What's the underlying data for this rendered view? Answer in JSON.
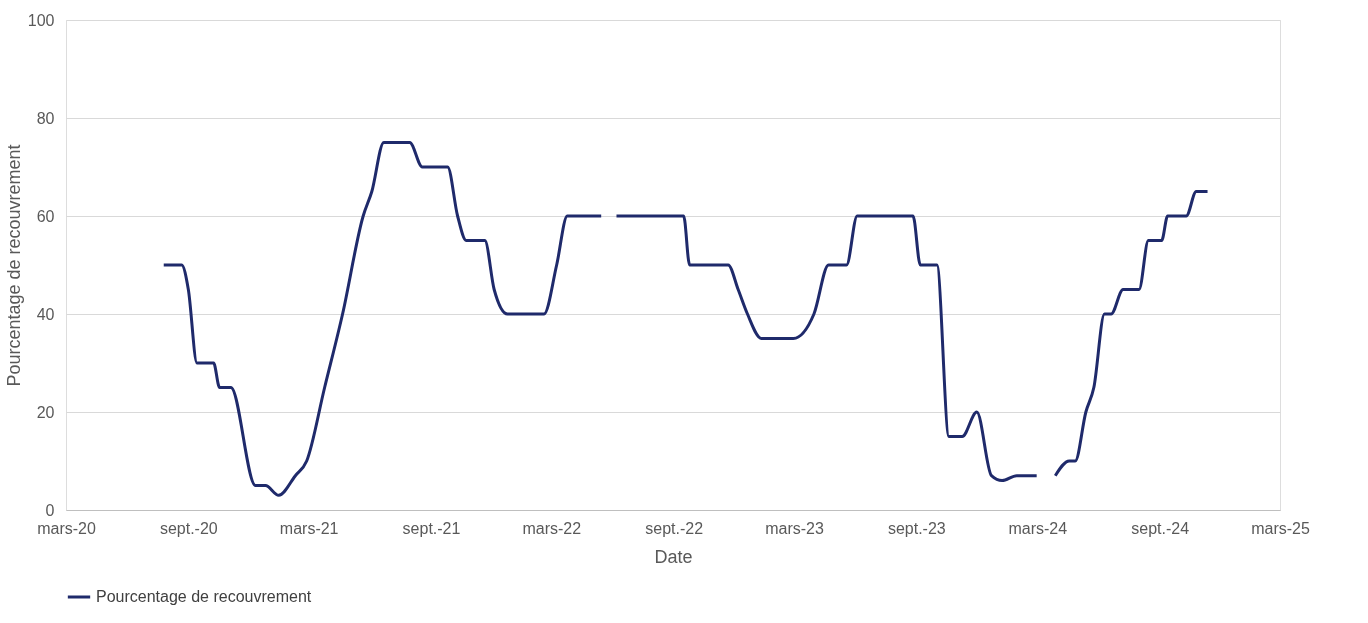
{
  "chart_data": {
    "type": "line",
    "xlabel": "Date",
    "ylabel": "Pourcentage de recouvrement",
    "x": [
      "2020-07-26",
      "2020-08-22",
      "2020-09-01",
      "2020-09-14",
      "2020-10-09",
      "2020-10-18",
      "2020-11-04",
      "2020-12-11",
      "2020-12-26",
      "2021-01-15",
      "2021-02-09",
      "2021-02-26",
      "2021-03-25",
      "2021-04-21",
      "2021-05-22",
      "2021-06-04",
      "2021-06-22",
      "2021-07-08",
      "2021-07-31",
      "2021-08-19",
      "2021-09-04",
      "2021-09-26",
      "2021-10-11",
      "2021-10-24",
      "2021-11-21",
      "2021-12-05",
      "2021-12-25",
      "2022-01-23",
      "2022-02-18",
      "2022-03-09",
      "2022-03-25",
      "2022-04-18",
      "2022-05-15",
      "2022-05-25",
      "2022-06-07",
      "2022-08-01",
      "2022-09-01",
      "2022-09-16",
      "2022-09-25",
      "2022-10-12",
      "2022-11-22",
      "2022-12-07",
      "2022-12-21",
      "2023-01-11",
      "2023-01-29",
      "2023-02-28",
      "2023-03-31",
      "2023-04-22",
      "2023-05-19",
      "2023-06-04",
      "2023-07-04",
      "2023-08-18",
      "2023-08-27",
      "2023-09-07",
      "2023-10-02",
      "2023-10-20",
      "2023-11-09",
      "2023-12-01",
      "2023-12-23",
      "2024-01-08",
      "2024-01-30",
      "2024-02-29",
      "2024-03-14",
      "2024-03-28",
      "2024-04-18",
      "2024-04-27",
      "2024-05-13",
      "2024-05-25",
      "2024-06-10",
      "2024-06-20",
      "2024-07-08",
      "2024-08-01",
      "2024-08-15",
      "2024-09-04",
      "2024-09-13",
      "2024-10-11",
      "2024-10-26",
      "2024-11-12"
    ],
    "series": [
      {
        "name": "Pourcentage de recouvrement",
        "color": "#1f2a6b",
        "values": [
          50,
          50,
          45,
          30,
          30,
          25,
          25,
          5,
          5,
          3,
          7,
          10,
          25,
          40,
          60,
          65,
          75,
          75,
          75,
          70,
          70,
          70,
          60,
          55,
          55,
          45,
          40,
          40,
          40,
          50,
          60,
          60,
          60,
          null,
          60,
          60,
          60,
          60,
          50,
          50,
          50,
          45,
          40,
          35,
          35,
          35,
          40,
          50,
          50,
          60,
          60,
          60,
          60,
          50,
          50,
          15,
          15,
          20,
          7,
          6,
          7,
          7,
          null,
          7,
          10,
          10,
          20,
          25,
          40,
          40,
          45,
          45,
          55,
          55,
          60,
          60,
          65,
          65
        ]
      }
    ],
    "xlim": [
      "2020-03-01",
      "2025-03-01"
    ],
    "xticks": [
      {
        "value": "2020-03-01",
        "label": "mars-20"
      },
      {
        "value": "2020-09-01",
        "label": "sept.-20"
      },
      {
        "value": "2021-03-01",
        "label": "mars-21"
      },
      {
        "value": "2021-09-01",
        "label": "sept.-21"
      },
      {
        "value": "2022-03-01",
        "label": "mars-22"
      },
      {
        "value": "2022-09-01",
        "label": "sept.-22"
      },
      {
        "value": "2023-03-01",
        "label": "mars-23"
      },
      {
        "value": "2023-09-01",
        "label": "sept.-23"
      },
      {
        "value": "2024-03-01",
        "label": "mars-24"
      },
      {
        "value": "2024-09-01",
        "label": "sept.-24"
      },
      {
        "value": "2025-03-01",
        "label": "mars-25"
      }
    ],
    "ylim": [
      0,
      100
    ],
    "yticks": [
      0,
      20,
      40,
      60,
      80,
      100
    ],
    "grid": "y",
    "legend": "bottom",
    "marker": "none",
    "line_style": "solid"
  }
}
